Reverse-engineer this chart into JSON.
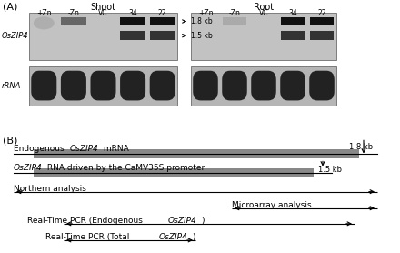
{
  "panel_A_label": "(A)",
  "panel_B_label": "(B)",
  "shoot_label": "Shoot",
  "root_label": "Root",
  "shoot_lanes": [
    "+Zn",
    "-Zn",
    "VC",
    "34",
    "22"
  ],
  "root_lanes": [
    "+Zn",
    "-Zn",
    "VC",
    "34",
    "22"
  ],
  "gene_label": "OsZIP4",
  "rrna_label": "rRNA",
  "size_18kb": "1.8 kb",
  "size_15kb": "1.5 kb",
  "gel_bg_shoot_zip4": "#c0c0c0",
  "gel_bg_root_zip4": "#c8c8c8",
  "gel_bg_rrna": "#b0b0b0",
  "band_very_dark": "#111111",
  "band_dark": "#333333",
  "band_medium": "#666666",
  "band_faint": "#999999",
  "rrna_band": "#222222",
  "arrow_color": "#000000"
}
